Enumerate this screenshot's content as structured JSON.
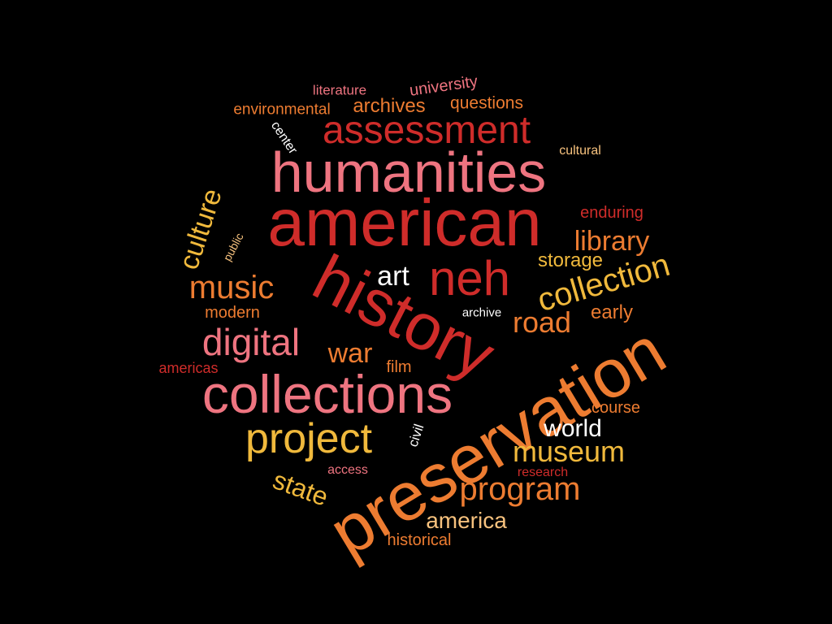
{
  "background": "#000000",
  "palette": {
    "pink": "#ee7480",
    "red": "#cf2c2a",
    "orange": "#ed7c31",
    "gold": "#f0b93c",
    "peach": "#f7c27e",
    "white": "#ffffff"
  },
  "words": [
    {
      "text": "preservation",
      "color": "orange"
    },
    {
      "text": "history",
      "color": "red"
    },
    {
      "text": "american",
      "color": "red"
    },
    {
      "text": "humanities",
      "color": "pink"
    },
    {
      "text": "collections",
      "color": "pink"
    },
    {
      "text": "neh",
      "color": "red"
    },
    {
      "text": "assessment",
      "color": "red"
    },
    {
      "text": "project",
      "color": "gold"
    },
    {
      "text": "collection",
      "color": "gold"
    },
    {
      "text": "digital",
      "color": "pink"
    },
    {
      "text": "program",
      "color": "orange"
    },
    {
      "text": "music",
      "color": "orange"
    },
    {
      "text": "museum",
      "color": "gold"
    },
    {
      "text": "culture",
      "color": "gold"
    },
    {
      "text": "road",
      "color": "orange"
    },
    {
      "text": "library",
      "color": "orange"
    },
    {
      "text": "art",
      "color": "white"
    },
    {
      "text": "war",
      "color": "orange"
    },
    {
      "text": "state",
      "color": "gold"
    },
    {
      "text": "world",
      "color": "white"
    },
    {
      "text": "america",
      "color": "peach"
    },
    {
      "text": "storage",
      "color": "gold"
    },
    {
      "text": "early",
      "color": "orange"
    },
    {
      "text": "archives",
      "color": "orange"
    },
    {
      "text": "questions",
      "color": "orange"
    },
    {
      "text": "university",
      "color": "pink"
    },
    {
      "text": "environmental",
      "color": "orange"
    },
    {
      "text": "enduring",
      "color": "red"
    },
    {
      "text": "course",
      "color": "orange"
    },
    {
      "text": "film",
      "color": "orange"
    },
    {
      "text": "modern",
      "color": "orange"
    },
    {
      "text": "americas",
      "color": "red"
    },
    {
      "text": "historical",
      "color": "orange"
    },
    {
      "text": "literature",
      "color": "pink"
    },
    {
      "text": "cultural",
      "color": "peach"
    },
    {
      "text": "center",
      "color": "white"
    },
    {
      "text": "public",
      "color": "peach"
    },
    {
      "text": "archive",
      "color": "white"
    },
    {
      "text": "civil",
      "color": "white"
    },
    {
      "text": "access",
      "color": "pink"
    },
    {
      "text": "research",
      "color": "red"
    }
  ]
}
